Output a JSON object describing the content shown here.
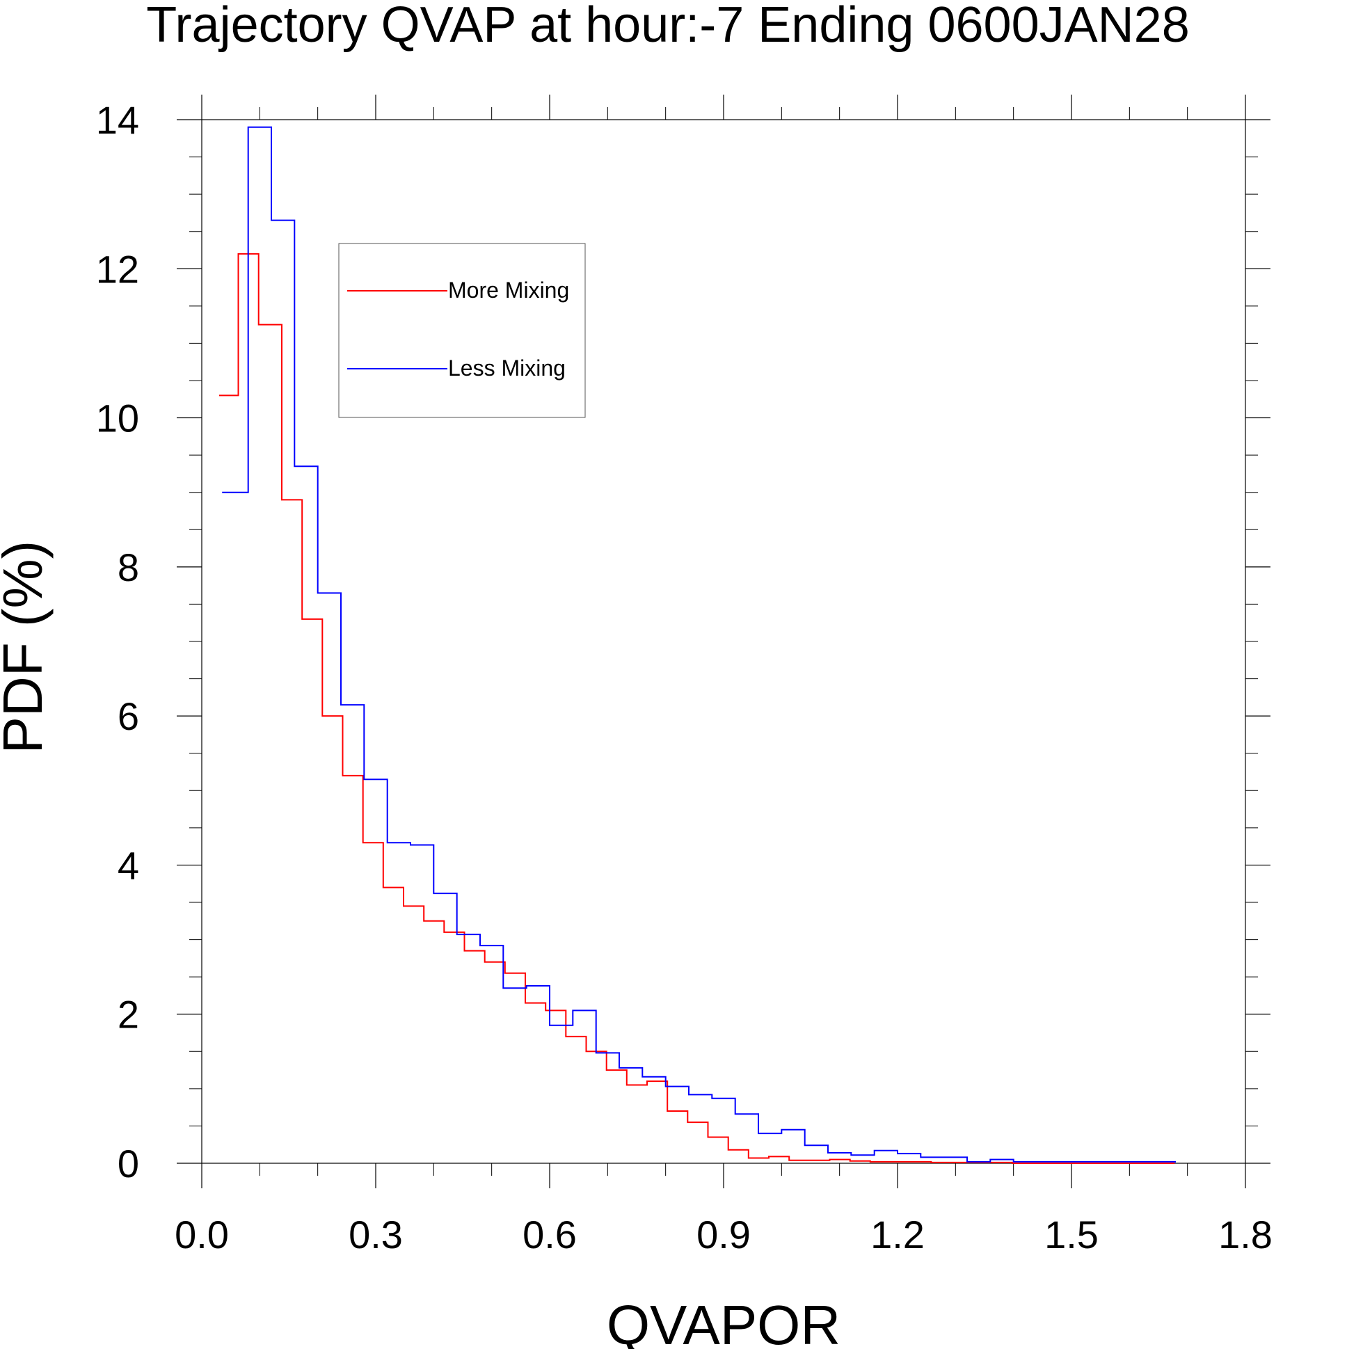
{
  "chart_data": {
    "type": "line",
    "step": true,
    "title": "Trajectory QVAP at hour:-7 Ending 0600JAN28",
    "xlabel": "QVAPOR",
    "ylabel": "PDF (%)",
    "xlim": [
      0.0,
      1.8
    ],
    "ylim": [
      0,
      14
    ],
    "x_ticks": [
      "0.0",
      "0.3",
      "0.6",
      "0.9",
      "1.2",
      "1.5",
      "1.8"
    ],
    "x_tick_values": [
      0.0,
      0.3,
      0.6,
      0.9,
      1.2,
      1.5,
      1.8
    ],
    "y_ticks": [
      "0",
      "2",
      "4",
      "6",
      "8",
      "10",
      "12",
      "14"
    ],
    "y_tick_values": [
      0,
      2,
      4,
      6,
      8,
      10,
      12,
      14
    ],
    "grid": false,
    "legend_position": "top-left",
    "series": [
      {
        "name": "More Mixing",
        "color": "#ff0000",
        "x": [
          0.03,
          0.063,
          0.098,
          0.138,
          0.173,
          0.208,
          0.243,
          0.278,
          0.313,
          0.348,
          0.383,
          0.418,
          0.453,
          0.488,
          0.523,
          0.558,
          0.593,
          0.628,
          0.663,
          0.698,
          0.733,
          0.768,
          0.803,
          0.838,
          0.873,
          0.908,
          0.943,
          0.978,
          1.013,
          1.048,
          1.083,
          1.118,
          1.153,
          1.188,
          1.223,
          1.258,
          1.293,
          1.328,
          1.363,
          1.398,
          1.433,
          1.468,
          1.503,
          1.538,
          1.573,
          1.608,
          1.643
        ],
        "values": [
          10.3,
          12.2,
          11.25,
          8.9,
          7.3,
          6.0,
          5.2,
          4.3,
          3.7,
          3.45,
          3.25,
          3.1,
          2.85,
          2.7,
          2.55,
          2.15,
          2.05,
          1.7,
          1.5,
          1.25,
          1.05,
          1.1,
          0.7,
          0.55,
          0.35,
          0.18,
          0.07,
          0.09,
          0.04,
          0.04,
          0.05,
          0.03,
          0.02,
          0.02,
          0.02,
          0.01,
          0.01,
          0.01,
          0.01,
          0.0,
          0.0,
          0.0,
          0.0,
          0.0,
          0.0,
          0.0,
          0.0
        ]
      },
      {
        "name": "Less Mixing",
        "color": "#0000ff",
        "x": [
          0.035,
          0.08,
          0.12,
          0.16,
          0.2,
          0.24,
          0.28,
          0.32,
          0.36,
          0.4,
          0.44,
          0.48,
          0.52,
          0.56,
          0.6,
          0.64,
          0.68,
          0.72,
          0.76,
          0.8,
          0.84,
          0.88,
          0.92,
          0.96,
          1.0,
          1.04,
          1.08,
          1.12,
          1.16,
          1.2,
          1.24,
          1.28,
          1.32,
          1.36,
          1.4,
          1.44,
          1.48,
          1.52,
          1.56,
          1.6,
          1.64
        ],
        "values": [
          9.0,
          13.9,
          12.65,
          9.35,
          7.65,
          6.15,
          5.15,
          4.3,
          4.27,
          3.62,
          3.07,
          2.92,
          2.35,
          2.38,
          1.85,
          2.05,
          1.48,
          1.28,
          1.16,
          1.03,
          0.92,
          0.87,
          0.66,
          0.4,
          0.45,
          0.24,
          0.14,
          0.11,
          0.17,
          0.13,
          0.08,
          0.08,
          0.02,
          0.05,
          0.02,
          0.02,
          0.02,
          0.02,
          0.02,
          0.02,
          0.02
        ]
      }
    ]
  }
}
